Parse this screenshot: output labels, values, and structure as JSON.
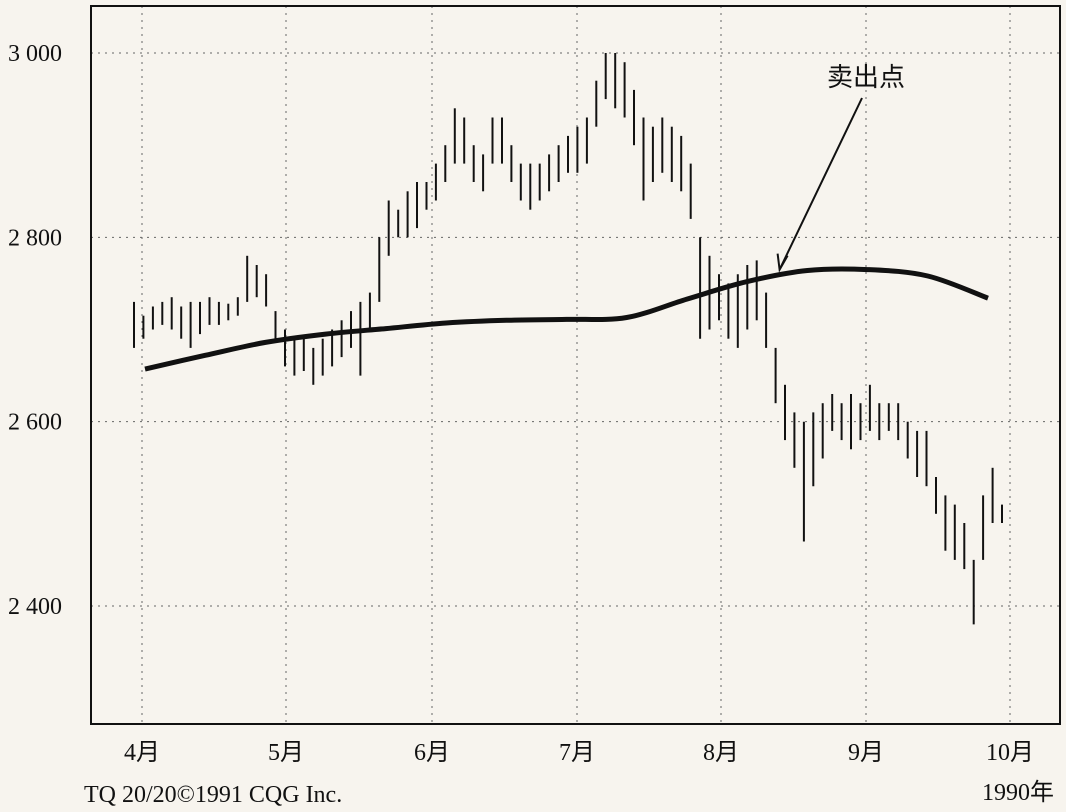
{
  "chart_data": {
    "type": "bar",
    "subtype": "ohlc-price-bars-with-moving-average",
    "title": "",
    "xlabel": "",
    "ylabel": "",
    "ylim": [
      2270,
      3000
    ],
    "y_ticks": [
      {
        "value": 3000,
        "label": "3 000"
      },
      {
        "value": 2800,
        "label": "2 800"
      },
      {
        "value": 2600,
        "label": "2 600"
      },
      {
        "value": 2400,
        "label": "2 400"
      }
    ],
    "x_ticks": [
      "4月",
      "5月",
      "6月",
      "7月",
      "8月",
      "9月",
      "10月"
    ],
    "grid": true,
    "price_bars": [
      {
        "low": 2680,
        "high": 2730
      },
      {
        "low": 2690,
        "high": 2715
      },
      {
        "low": 2700,
        "high": 2725
      },
      {
        "low": 2705,
        "high": 2730
      },
      {
        "low": 2700,
        "high": 2735
      },
      {
        "low": 2690,
        "high": 2725
      },
      {
        "low": 2680,
        "high": 2730
      },
      {
        "low": 2695,
        "high": 2730
      },
      {
        "low": 2705,
        "high": 2735
      },
      {
        "low": 2705,
        "high": 2730
      },
      {
        "low": 2710,
        "high": 2728
      },
      {
        "low": 2715,
        "high": 2735
      },
      {
        "low": 2730,
        "high": 2780
      },
      {
        "low": 2735,
        "high": 2770
      },
      {
        "low": 2725,
        "high": 2760
      },
      {
        "low": 2690,
        "high": 2720
      },
      {
        "low": 2660,
        "high": 2700
      },
      {
        "low": 2650,
        "high": 2690
      },
      {
        "low": 2655,
        "high": 2690
      },
      {
        "low": 2640,
        "high": 2680
      },
      {
        "low": 2650,
        "high": 2690
      },
      {
        "low": 2660,
        "high": 2700
      },
      {
        "low": 2670,
        "high": 2710
      },
      {
        "low": 2680,
        "high": 2720
      },
      {
        "low": 2650,
        "high": 2730
      },
      {
        "low": 2700,
        "high": 2740
      },
      {
        "low": 2730,
        "high": 2800
      },
      {
        "low": 2780,
        "high": 2840
      },
      {
        "low": 2800,
        "high": 2830
      },
      {
        "low": 2800,
        "high": 2850
      },
      {
        "low": 2810,
        "high": 2860
      },
      {
        "low": 2830,
        "high": 2860
      },
      {
        "low": 2840,
        "high": 2880
      },
      {
        "low": 2860,
        "high": 2900
      },
      {
        "low": 2880,
        "high": 2940
      },
      {
        "low": 2880,
        "high": 2930
      },
      {
        "low": 2860,
        "high": 2900
      },
      {
        "low": 2850,
        "high": 2890
      },
      {
        "low": 2880,
        "high": 2930
      },
      {
        "low": 2880,
        "high": 2930
      },
      {
        "low": 2860,
        "high": 2900
      },
      {
        "low": 2840,
        "high": 2880
      },
      {
        "low": 2830,
        "high": 2880
      },
      {
        "low": 2840,
        "high": 2880
      },
      {
        "low": 2850,
        "high": 2890
      },
      {
        "low": 2860,
        "high": 2900
      },
      {
        "low": 2870,
        "high": 2910
      },
      {
        "low": 2870,
        "high": 2920
      },
      {
        "low": 2880,
        "high": 2930
      },
      {
        "low": 2920,
        "high": 2970
      },
      {
        "low": 2950,
        "high": 3000
      },
      {
        "low": 2940,
        "high": 3000
      },
      {
        "low": 2930,
        "high": 2990
      },
      {
        "low": 2900,
        "high": 2960
      },
      {
        "low": 2840,
        "high": 2930
      },
      {
        "low": 2860,
        "high": 2920
      },
      {
        "low": 2870,
        "high": 2930
      },
      {
        "low": 2860,
        "high": 2920
      },
      {
        "low": 2850,
        "high": 2910
      },
      {
        "low": 2820,
        "high": 2880
      },
      {
        "low": 2690,
        "high": 2800
      },
      {
        "low": 2700,
        "high": 2780
      },
      {
        "low": 2710,
        "high": 2760
      },
      {
        "low": 2690,
        "high": 2750
      },
      {
        "low": 2680,
        "high": 2760
      },
      {
        "low": 2700,
        "high": 2770
      },
      {
        "low": 2710,
        "high": 2775
      },
      {
        "low": 2680,
        "high": 2740
      },
      {
        "low": 2620,
        "high": 2680
      },
      {
        "low": 2580,
        "high": 2640
      },
      {
        "low": 2550,
        "high": 2610
      },
      {
        "low": 2470,
        "high": 2600
      },
      {
        "low": 2530,
        "high": 2610
      },
      {
        "low": 2560,
        "high": 2620
      },
      {
        "low": 2590,
        "high": 2630
      },
      {
        "low": 2580,
        "high": 2620
      },
      {
        "low": 2570,
        "high": 2630
      },
      {
        "low": 2580,
        "high": 2620
      },
      {
        "low": 2590,
        "high": 2640
      },
      {
        "low": 2580,
        "high": 2620
      },
      {
        "low": 2590,
        "high": 2620
      },
      {
        "low": 2580,
        "high": 2620
      },
      {
        "low": 2560,
        "high": 2600
      },
      {
        "low": 2540,
        "high": 2590
      },
      {
        "low": 2530,
        "high": 2590
      },
      {
        "low": 2500,
        "high": 2540
      },
      {
        "low": 2460,
        "high": 2520
      },
      {
        "low": 2450,
        "high": 2510
      },
      {
        "low": 2440,
        "high": 2490
      },
      {
        "low": 2380,
        "high": 2450
      },
      {
        "low": 2450,
        "high": 2520
      },
      {
        "low": 2490,
        "high": 2550
      },
      {
        "low": 2490,
        "high": 2510
      }
    ],
    "moving_average": [
      2657,
      2672,
      2686,
      2695,
      2701,
      2707,
      2710,
      2711,
      2713,
      2733,
      2752,
      2764,
      2765,
      2758,
      2734
    ],
    "annotations": [
      {
        "text": "卖出点",
        "points_to": {
          "index": 68,
          "value": 2765
        }
      }
    ],
    "footer": {
      "credit": "TQ 20/20©1991 CQG Inc.",
      "year": "1990年"
    }
  }
}
